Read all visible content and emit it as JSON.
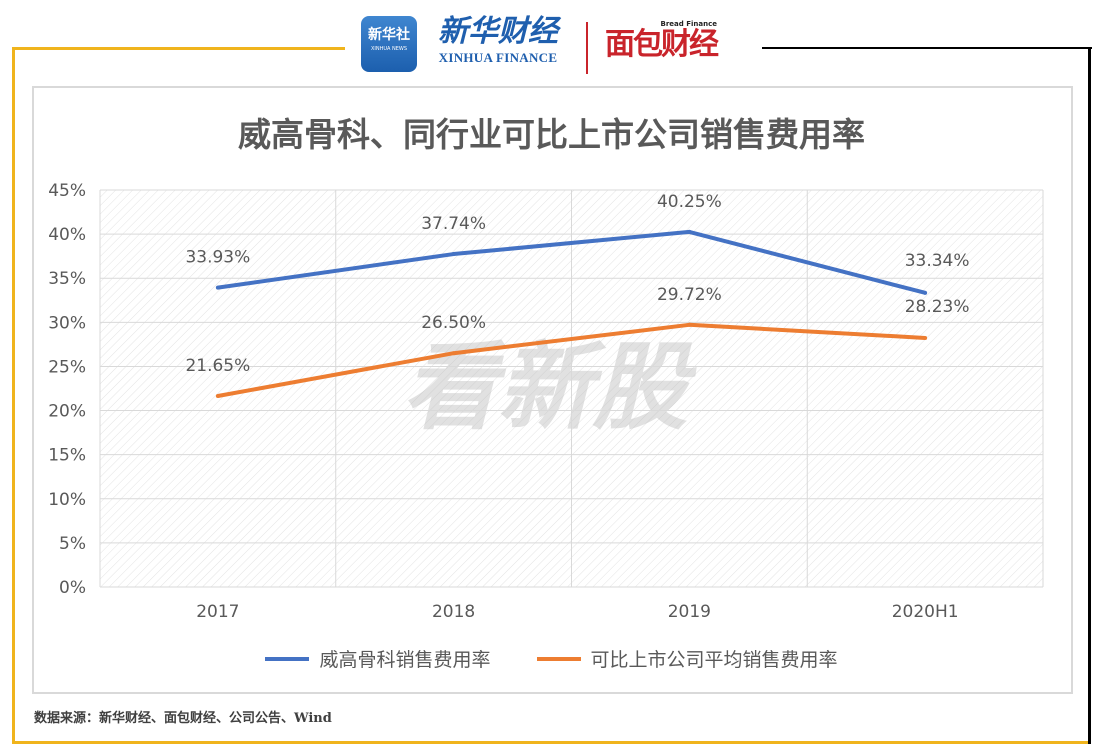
{
  "header": {
    "logo_xinhua_news": {
      "cn": "新华社",
      "en": "XINHUA NEWS"
    },
    "logo_xinhua_finance": {
      "cn": "新华财经",
      "en": "XINHUA FINANCE"
    },
    "logo_bread_finance": {
      "cn": "面包财经",
      "en": "Bread Finance"
    }
  },
  "watermark": "看新股",
  "source": "数据来源：新华财经、面包财经、公司公告、Wind",
  "colors": {
    "frame_accent": "#f0b41c",
    "series1": "#4472c4",
    "series2": "#ed7d31"
  },
  "chart_data": {
    "type": "line",
    "title": "威高骨科、同行业可比上市公司销售费用率",
    "categories": [
      "2017",
      "2018",
      "2019",
      "2020H1"
    ],
    "yticks": [
      "0%",
      "5%",
      "10%",
      "15%",
      "20%",
      "25%",
      "30%",
      "35%",
      "40%",
      "45%"
    ],
    "ylim": [
      0,
      45
    ],
    "grid": true,
    "legend_position": "bottom",
    "series": [
      {
        "name": "威高骨科销售费用率",
        "values": [
          33.93,
          37.74,
          40.25,
          33.34
        ],
        "labels": [
          "33.93%",
          "37.74%",
          "40.25%",
          "33.34%"
        ]
      },
      {
        "name": "可比上市公司平均销售费用率",
        "values": [
          21.65,
          26.5,
          29.72,
          28.23
        ],
        "labels": [
          "21.65%",
          "26.50%",
          "29.72%",
          "28.23%"
        ]
      }
    ]
  }
}
